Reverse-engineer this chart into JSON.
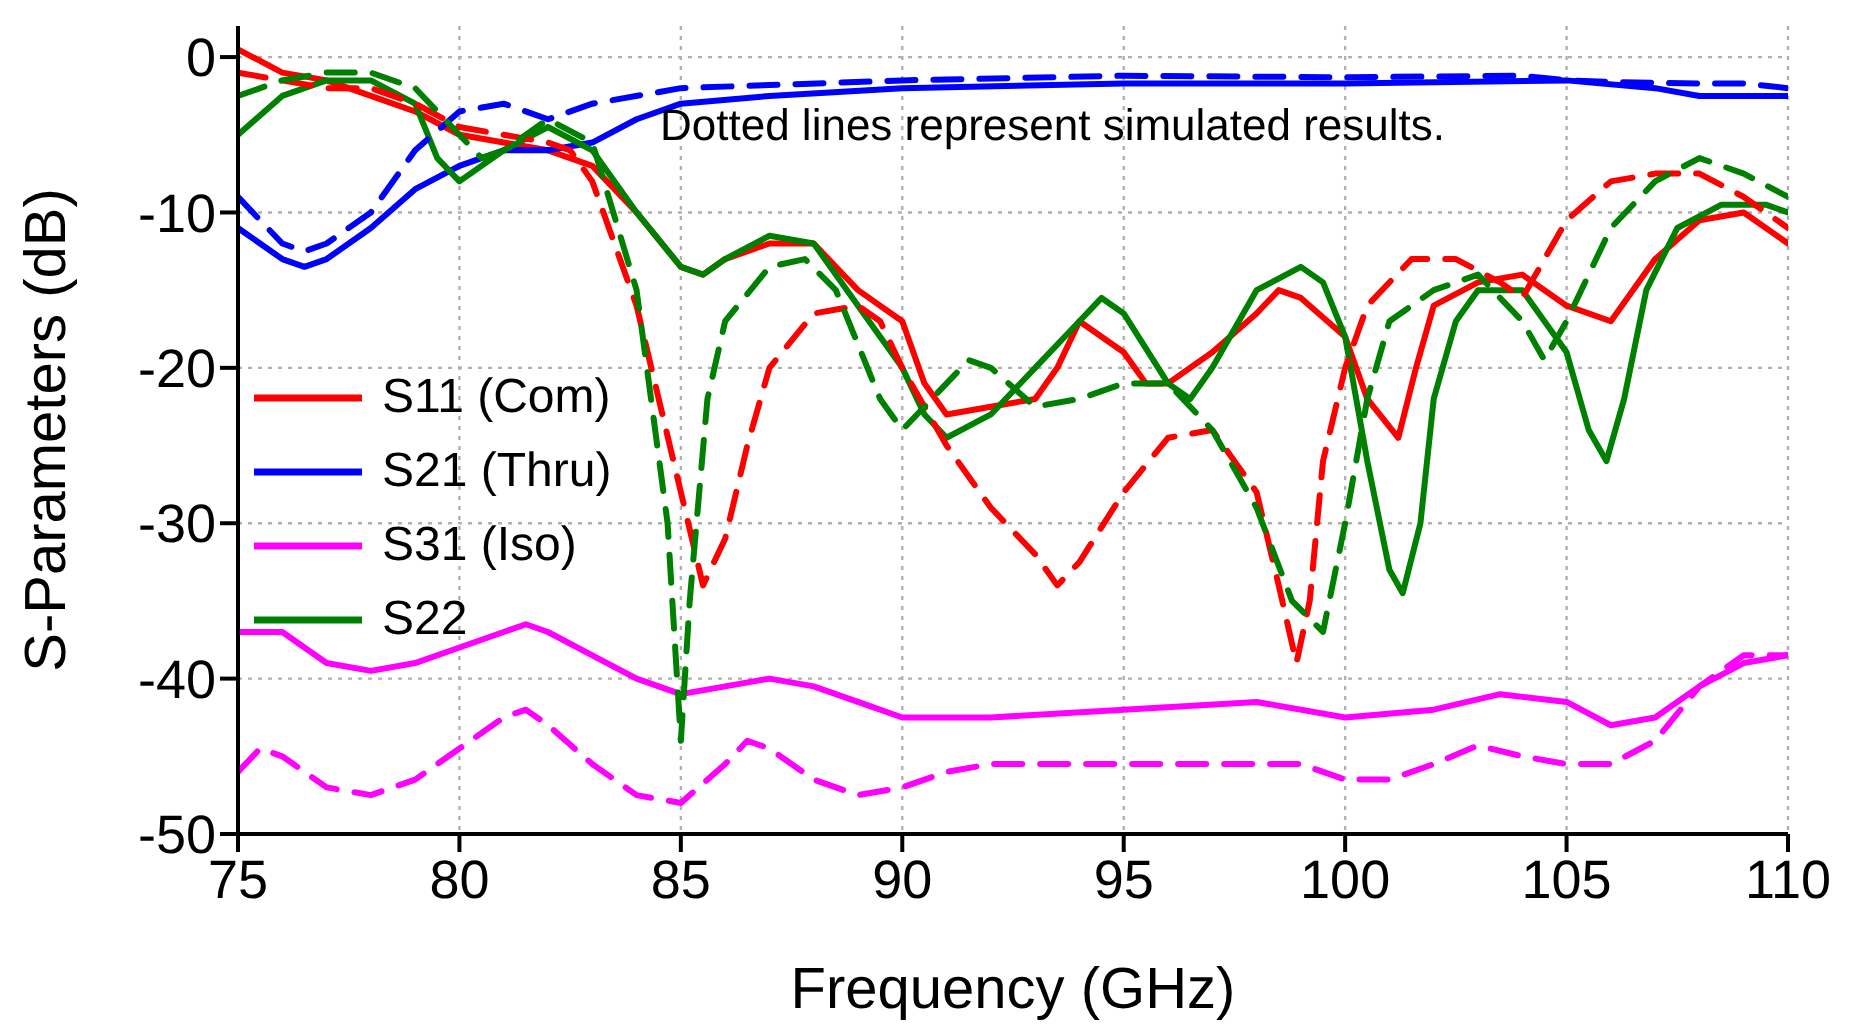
{
  "chart_data": {
    "type": "line",
    "xlabel": "Frequency (GHz)",
    "ylabel": "S-Parameters (dB)",
    "xlim": [
      75,
      110
    ],
    "xticks": [
      75,
      80,
      85,
      90,
      95,
      100,
      105,
      110
    ],
    "ylim": [
      -50,
      2
    ],
    "yticks": [
      -50,
      -40,
      -30,
      -20,
      -10,
      0
    ],
    "grid": true,
    "legend": "left",
    "line_style": "solid",
    "marker": "none",
    "annotations": [
      "Dotted lines represent simulated results."
    ],
    "series": [
      {
        "name": "S11 (Com)",
        "color": "#ff0000",
        "x": [
          75,
          76,
          77,
          78,
          79,
          80,
          81,
          82,
          83,
          84,
          85,
          85.5,
          86,
          87,
          88,
          89,
          90,
          90.5,
          91,
          92,
          93,
          93.5,
          94,
          94.5,
          95,
          95.5,
          96,
          97,
          98,
          98.5,
          99,
          100,
          100.5,
          101.2,
          101.6,
          102,
          103,
          104,
          105,
          106,
          107,
          108,
          109,
          110
        ],
        "values": [
          0.5,
          -1,
          -1.5,
          -2.5,
          -3.5,
          -5,
          -5.5,
          -6,
          -7,
          -10,
          -13.5,
          -14,
          -13,
          -12,
          -12,
          -15,
          -17,
          -21,
          -23,
          -22.5,
          -22,
          -20,
          -17,
          -18,
          -19,
          -21,
          -21,
          -19,
          -16.5,
          -15,
          -15.5,
          -18,
          -22,
          -24.5,
          -20,
          -16,
          -14.5,
          -14,
          -16,
          -17,
          -13,
          -10.5,
          -10,
          -12
        ]
      },
      {
        "name": "S21 (Thru)",
        "color": "#0000ff",
        "x": [
          75,
          76,
          76.5,
          77,
          78,
          79,
          80,
          81,
          82,
          83,
          84,
          85,
          87,
          90,
          95,
          100,
          105,
          107,
          108,
          110
        ],
        "values": [
          -11,
          -13,
          -13.5,
          -13,
          -11,
          -8.5,
          -7,
          -6,
          -6,
          -5.5,
          -4,
          -3,
          -2.5,
          -2,
          -1.7,
          -1.7,
          -1.5,
          -2,
          -2.5,
          -2.5
        ]
      },
      {
        "name": "S31 (Iso)",
        "color": "#ff00ff",
        "x": [
          75,
          76,
          77,
          78,
          79,
          80,
          81,
          81.5,
          82,
          83,
          84,
          85,
          86,
          87,
          88,
          89,
          90,
          92,
          95,
          98,
          100,
          102,
          103.5,
          105,
          106,
          107,
          108,
          109,
          110
        ],
        "values": [
          -37,
          -37,
          -39,
          -39.5,
          -39,
          -38,
          -37,
          -36.5,
          -37,
          -38.5,
          -40,
          -41,
          -40.5,
          -40,
          -40.5,
          -41.5,
          -42.5,
          -42.5,
          -42,
          -41.5,
          -42.5,
          -42,
          -41,
          -41.5,
          -43,
          -42.5,
          -40.5,
          -39,
          -38.5
        ]
      },
      {
        "name": "S22",
        "color": "#008000",
        "x": [
          75,
          76,
          77,
          78,
          79,
          79.5,
          80,
          81,
          82,
          83,
          84,
          85,
          85.5,
          86,
          87,
          88,
          89,
          90,
          90.5,
          91,
          92,
          93,
          94,
          94.5,
          95,
          96,
          96.5,
          97,
          98,
          99,
          99.5,
          100,
          100.5,
          101,
          101.3,
          101.7,
          102,
          102.5,
          103,
          104,
          105,
          105.5,
          105.9,
          106.3,
          106.8,
          107.5,
          108.5,
          109.5,
          110
        ],
        "values": [
          -5,
          -2.5,
          -1.5,
          -1.5,
          -3,
          -6.5,
          -8,
          -6,
          -4.5,
          -6,
          -10,
          -13.5,
          -14,
          -13,
          -11.5,
          -12,
          -16,
          -20,
          -23,
          -24.5,
          -23,
          -20,
          -17,
          -15.5,
          -16.5,
          -21,
          -22,
          -20,
          -15,
          -13.5,
          -14.5,
          -18,
          -26,
          -33,
          -34.5,
          -30,
          -22,
          -17,
          -15,
          -15,
          -19,
          -24,
          -26,
          -22,
          -15,
          -11,
          -9.5,
          -9.5,
          -10
        ]
      },
      {
        "color": "#ff0000",
        "line_style": "dashed",
        "x": [
          75,
          76,
          77,
          78,
          79,
          80,
          81,
          82,
          82.5,
          83,
          84,
          85,
          85.5,
          86,
          86.5,
          87,
          88,
          89,
          89.5,
          90,
          91,
          92,
          93,
          93.5,
          94,
          95,
          96,
          97,
          98,
          98.5,
          98.9,
          99.2,
          99.5,
          100,
          100.5,
          101.5,
          102.5,
          103.5,
          104,
          104.5,
          105,
          106,
          107,
          108,
          109,
          110
        ],
        "values": [
          -1,
          -1.5,
          -2,
          -2,
          -3,
          -4.5,
          -5,
          -5.5,
          -6,
          -8,
          -16,
          -28,
          -34,
          -31,
          -25,
          -20,
          -16.5,
          -16,
          -17,
          -20,
          -25,
          -29,
          -32,
          -34,
          -32.5,
          -28,
          -24.5,
          -24,
          -28,
          -34,
          -39,
          -35,
          -26,
          -20,
          -16,
          -13,
          -13,
          -14.5,
          -15.5,
          -13,
          -10.5,
          -8,
          -7.5,
          -7.5,
          -9,
          -11
        ]
      },
      {
        "color": "#0000ff",
        "line_style": "dashed",
        "x": [
          75,
          76,
          76.5,
          77,
          78,
          79,
          80,
          81,
          82,
          83,
          85,
          90,
          95,
          100,
          104,
          105,
          106,
          108,
          109,
          110
        ],
        "values": [
          -9,
          -12,
          -12.5,
          -12,
          -10,
          -6,
          -3.5,
          -3,
          -4,
          -3,
          -2,
          -1.5,
          -1.2,
          -1.3,
          -1.2,
          -1.5,
          -1.6,
          -1.7,
          -1.7,
          -2
        ]
      },
      {
        "color": "#ff00ff",
        "line_style": "dashed",
        "x": [
          75,
          75.5,
          76,
          77,
          78,
          79,
          80,
          81,
          81.5,
          82,
          83,
          84,
          85,
          86,
          86.5,
          87,
          88,
          89,
          90,
          91,
          92,
          95,
          97,
          99,
          100,
          101,
          102,
          103,
          104,
          105,
          106,
          107,
          108,
          109,
          110
        ],
        "values": [
          -46,
          -44.5,
          -45,
          -47,
          -47.5,
          -46.5,
          -44.5,
          -42.5,
          -42,
          -43,
          -45.5,
          -47.5,
          -48,
          -45.5,
          -44,
          -44.5,
          -46.5,
          -47.5,
          -47,
          -46,
          -45.5,
          -45.5,
          -45.5,
          -45.5,
          -46.5,
          -46.5,
          -45.5,
          -44.3,
          -45,
          -45.5,
          -45.5,
          -44,
          -40.5,
          -38.5,
          -38.5
        ]
      },
      {
        "color": "#008000",
        "line_style": "dashed",
        "x": [
          75,
          76,
          77,
          78,
          79,
          80,
          80.5,
          81,
          82,
          83,
          84,
          84.7,
          85,
          85.2,
          85.6,
          86,
          87,
          87.8,
          88.5,
          89.5,
          90,
          91,
          91.5,
          92,
          93,
          94,
          95,
          96,
          97,
          98,
          98.8,
          99.5,
          100,
          100.5,
          101,
          102,
          103,
          104,
          104.5,
          105,
          106,
          107,
          108,
          109,
          110
        ],
        "values": [
          -2.5,
          -1.5,
          -1,
          -1,
          -2,
          -5,
          -6.5,
          -6,
          -4,
          -5.5,
          -15,
          -30,
          -44,
          -35,
          -22,
          -17,
          -13.5,
          -13,
          -15,
          -22,
          -24,
          -21,
          -19.5,
          -20,
          -22.5,
          -22,
          -21,
          -21,
          -24,
          -29,
          -35,
          -37,
          -30,
          -22,
          -17,
          -15,
          -14,
          -17,
          -19.5,
          -17,
          -11,
          -8,
          -6.5,
          -7.5,
          -9
        ]
      }
    ]
  }
}
